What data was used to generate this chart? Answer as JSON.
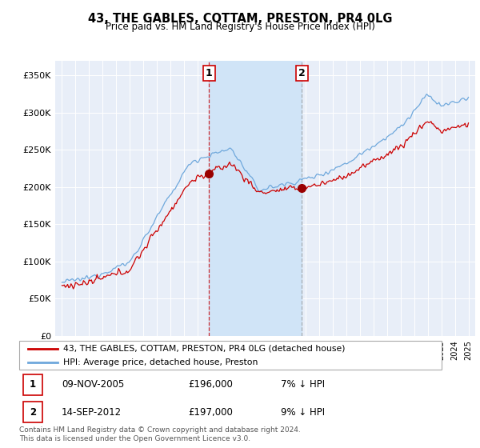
{
  "title": "43, THE GABLES, COTTAM, PRESTON, PR4 0LG",
  "subtitle": "Price paid vs. HM Land Registry's House Price Index (HPI)",
  "ylabel_ticks": [
    "£0",
    "£50K",
    "£100K",
    "£150K",
    "£200K",
    "£250K",
    "£300K",
    "£350K"
  ],
  "ytick_vals": [
    0,
    50000,
    100000,
    150000,
    200000,
    250000,
    300000,
    350000
  ],
  "ylim": [
    0,
    370000
  ],
  "xlim": [
    1994.5,
    2025.5
  ],
  "sale1": {
    "date_num": 2005.86,
    "price": 196000,
    "label": "1",
    "date_str": "09-NOV-2005",
    "pct": "7%"
  },
  "sale2": {
    "date_num": 2012.71,
    "price": 197000,
    "label": "2",
    "date_str": "14-SEP-2012",
    "pct": "9%"
  },
  "legend_line1": "43, THE GABLES, COTTAM, PRESTON, PR4 0LG (detached house)",
  "legend_line2": "HPI: Average price, detached house, Preston",
  "table_row1": [
    "1",
    "09-NOV-2005",
    "£196,000",
    "7% ↓ HPI"
  ],
  "table_row2": [
    "2",
    "14-SEP-2012",
    "£197,000",
    "9% ↓ HPI"
  ],
  "footer": "Contains HM Land Registry data © Crown copyright and database right 2024.\nThis data is licensed under the Open Government Licence v3.0.",
  "hpi_color": "#6fa8dc",
  "price_color": "#cc0000",
  "background_color": "#e8eef8",
  "sale_marker_color": "#990000",
  "vline1_color": "#cc0000",
  "vline2_color": "#888888",
  "span_color": "#d0e4f7"
}
